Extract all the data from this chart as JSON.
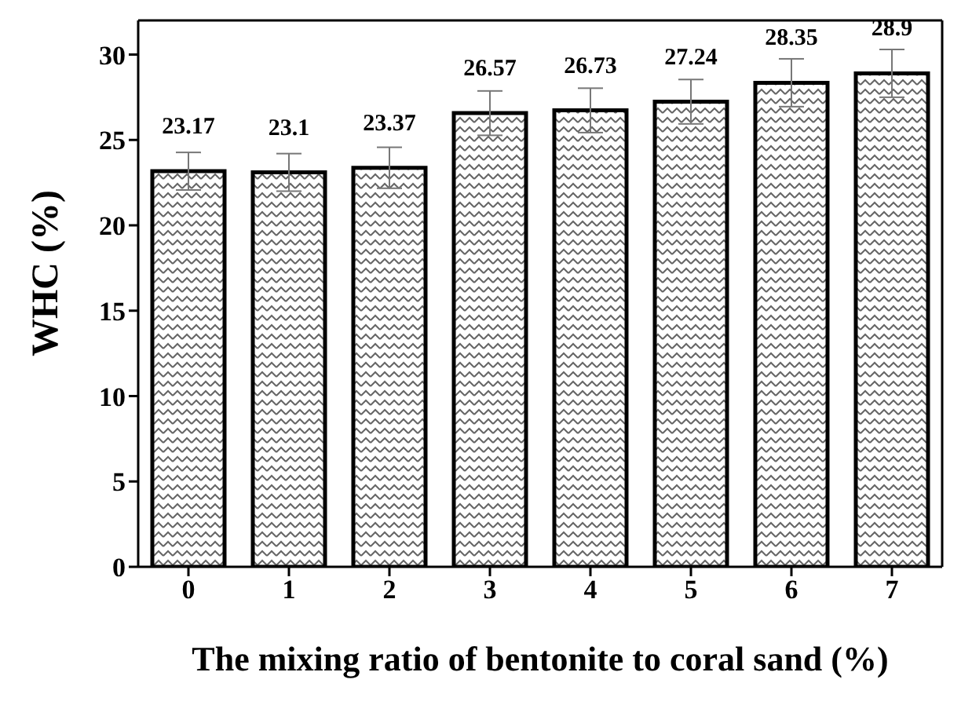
{
  "chart_data": {
    "type": "bar",
    "xlabel": "The mixing ratio of bentonite to coral sand (%)",
    "ylabel": "WHC (%)",
    "categories": [
      "0",
      "1",
      "2",
      "3",
      "4",
      "5",
      "6",
      "7"
    ],
    "values": [
      23.17,
      23.1,
      23.37,
      26.57,
      26.73,
      27.24,
      28.35,
      28.9
    ],
    "errors": [
      1.1,
      1.1,
      1.2,
      1.3,
      1.3,
      1.3,
      1.4,
      1.4
    ],
    "color": "#000000",
    "ylim": [
      0,
      32
    ],
    "yticks": [
      0,
      5,
      10,
      15,
      20,
      25,
      30
    ],
    "data_labels": true
  }
}
